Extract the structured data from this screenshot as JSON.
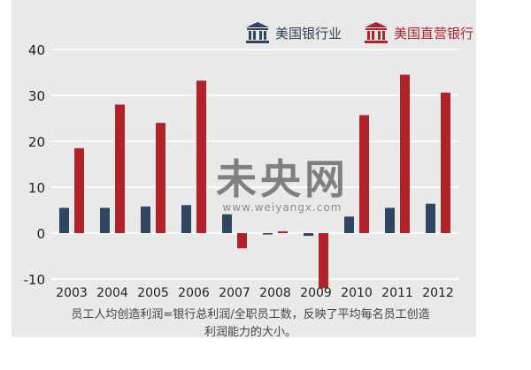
{
  "chart_data": {
    "type": "bar",
    "categories": [
      "2003",
      "2004",
      "2005",
      "2006",
      "2007",
      "2008",
      "2009",
      "2010",
      "2011",
      "2012"
    ],
    "series": [
      {
        "name": "美国银行业",
        "color": "#2f4560",
        "values": [
          5.5,
          5.5,
          5.8,
          6.1,
          4.1,
          -0.3,
          -0.6,
          3.6,
          5.5,
          6.4
        ]
      },
      {
        "name": "美国直营银行",
        "color": "#b0232a",
        "values": [
          18.5,
          28.0,
          24.0,
          33.2,
          -3.3,
          0.4,
          -12.0,
          25.7,
          34.5,
          30.6
        ]
      }
    ],
    "yticks": [
      40,
      30,
      20,
      10,
      0,
      -10
    ],
    "ylim": [
      -12,
      40
    ],
    "grid": true,
    "legend_position": "top-right"
  },
  "caption": {
    "line1": "员工人均创造利润=银行总利润/全职员工数，反映了平均每名员工创造",
    "line2": "利润能力的大小。"
  },
  "watermark": {
    "big": "未央网",
    "small": "www.weiyangx.com"
  }
}
